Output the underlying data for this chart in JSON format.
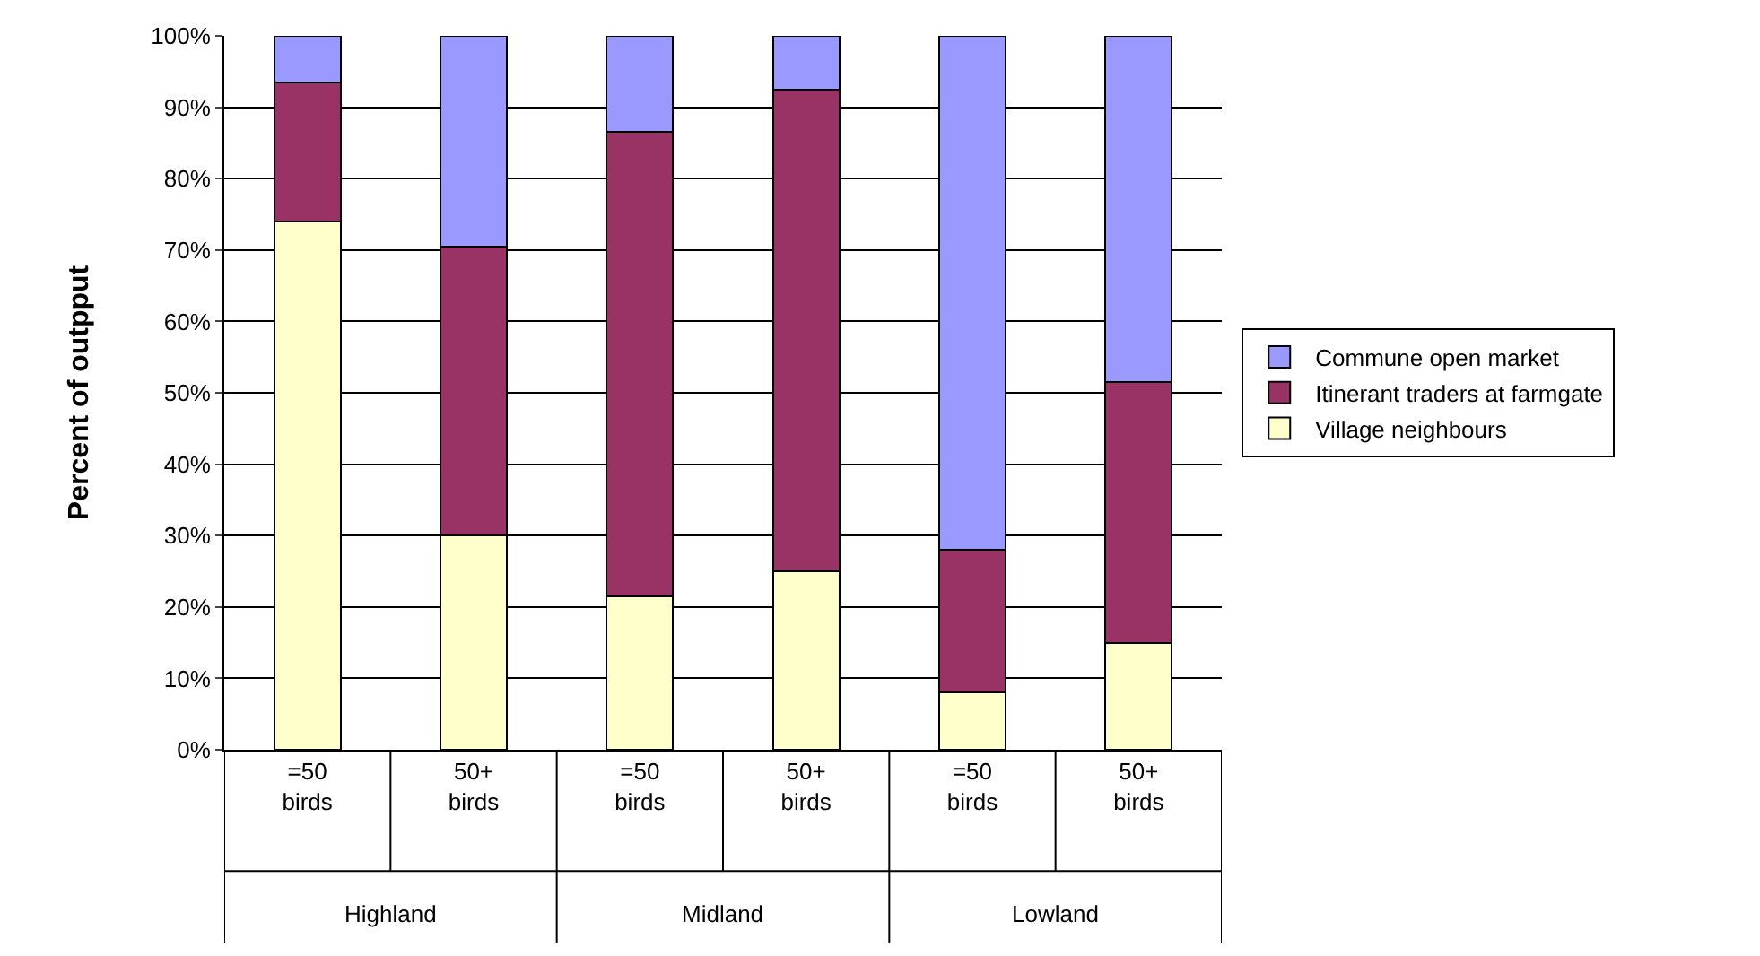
{
  "chart_data": {
    "type": "bar",
    "stacked": true,
    "ylabel": "Percent of outpput",
    "categories": [
      "=50 birds",
      "50+ birds",
      "=50 birds",
      "50+ birds",
      "=50 birds",
      "50+ birds"
    ],
    "annotations": [
      "Highland",
      "Midland",
      "Lowland"
    ],
    "series": [
      {
        "name": "Village neighbours",
        "color": "#ffffcc",
        "values": [
          74,
          30,
          21.5,
          25,
          8,
          15
        ]
      },
      {
        "name": "Itinerant traders at farmgate",
        "color": "#993366",
        "values": [
          19.5,
          40.5,
          65,
          67.5,
          20,
          36.5
        ]
      },
      {
        "name": "Commune open market",
        "color": "#9999ff",
        "values": [
          6.5,
          29.5,
          13.5,
          7.5,
          72,
          48.5
        ]
      }
    ],
    "ylim": [
      0,
      100
    ],
    "yticks": [
      {
        "value": 0,
        "label": "0%"
      },
      {
        "value": 10,
        "label": "10%"
      },
      {
        "value": 20,
        "label": "20%"
      },
      {
        "value": 30,
        "label": "30%"
      },
      {
        "value": 40,
        "label": "40%"
      },
      {
        "value": 50,
        "label": "50%"
      },
      {
        "value": 60,
        "label": "60%"
      },
      {
        "value": 70,
        "label": "70%"
      },
      {
        "value": 80,
        "label": "80%"
      },
      {
        "value": 90,
        "label": "90%"
      },
      {
        "value": 100,
        "label": "100%"
      }
    ],
    "grid": "y",
    "legend": "right"
  }
}
